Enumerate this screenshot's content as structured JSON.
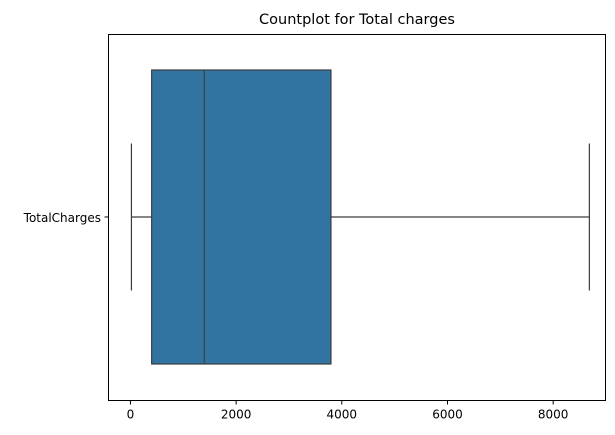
{
  "chart_data": {
    "type": "box",
    "title": "Countplot for Total charges",
    "xlabel": "",
    "ylabel": "",
    "category": "TotalCharges",
    "box": {
      "min": 18.8,
      "q1": 401.45,
      "median": 1397.47,
      "q3": 3794.74,
      "max": 8684.8
    },
    "xlim": [
      -415,
      8990
    ],
    "xticks": [
      0,
      2000,
      4000,
      6000,
      8000
    ],
    "xtick_labels": [
      "0",
      "2000",
      "4000",
      "6000",
      "8000"
    ],
    "grid": false,
    "colors": {
      "box_fill": "#3274a1",
      "line": "#3d3d3d",
      "axes": "#000000"
    }
  }
}
